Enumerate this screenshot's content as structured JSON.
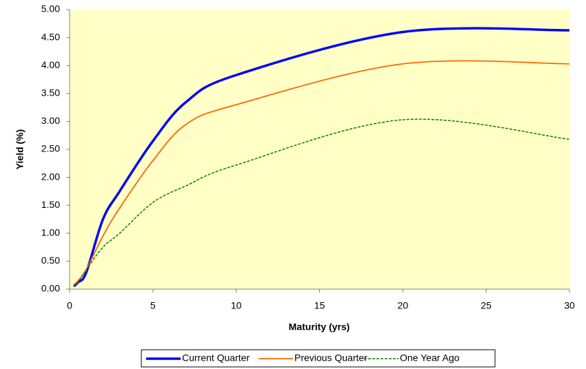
{
  "chart_data": {
    "type": "line",
    "x_label": "Maturity (yrs)",
    "y_label": "Yield (%)",
    "background": "#ffffc6",
    "xlim": [
      0,
      30
    ],
    "xticks": [
      0,
      5,
      10,
      15,
      20,
      25,
      30
    ],
    "ylim": [
      0,
      5
    ],
    "yticks": [
      {
        "value": 0,
        "label": "0.00"
      },
      {
        "value": 0.5,
        "label": "0.50"
      },
      {
        "value": 1,
        "label": "1.00"
      },
      {
        "value": 1.5,
        "label": "1.50"
      },
      {
        "value": 2,
        "label": "2.00"
      },
      {
        "value": 2.5,
        "label": "2.50"
      },
      {
        "value": 3,
        "label": "3.00"
      },
      {
        "value": 3.5,
        "label": "3.50"
      },
      {
        "value": 4,
        "label": "4.00"
      },
      {
        "value": 4.5,
        "label": "4.50"
      },
      {
        "value": 5,
        "label": "5.00"
      }
    ],
    "grid": false,
    "legend_position": "bottom",
    "x": [
      0.25,
      0.5,
      1,
      2,
      3,
      5,
      7,
      10,
      20,
      30
    ],
    "series": [
      {
        "name": "Current Quarter",
        "color": "#0000ff",
        "width": 3.5,
        "dashed": false,
        "values": [
          0.05,
          0.12,
          0.3,
          1.25,
          1.75,
          2.65,
          3.35,
          3.83,
          4.6,
          4.63
        ]
      },
      {
        "name": "Previous Quarter",
        "color": "#ff6600",
        "width": 1.8,
        "dashed": false,
        "values": [
          0.08,
          0.15,
          0.35,
          0.95,
          1.45,
          2.3,
          2.95,
          3.3,
          4.03,
          4.03
        ]
      },
      {
        "name": "One Year Ago",
        "color": "#008000",
        "width": 1.5,
        "dashed": true,
        "values": [
          0.05,
          0.12,
          0.35,
          0.75,
          1.0,
          1.55,
          1.85,
          2.22,
          3.03,
          2.68
        ]
      }
    ]
  }
}
